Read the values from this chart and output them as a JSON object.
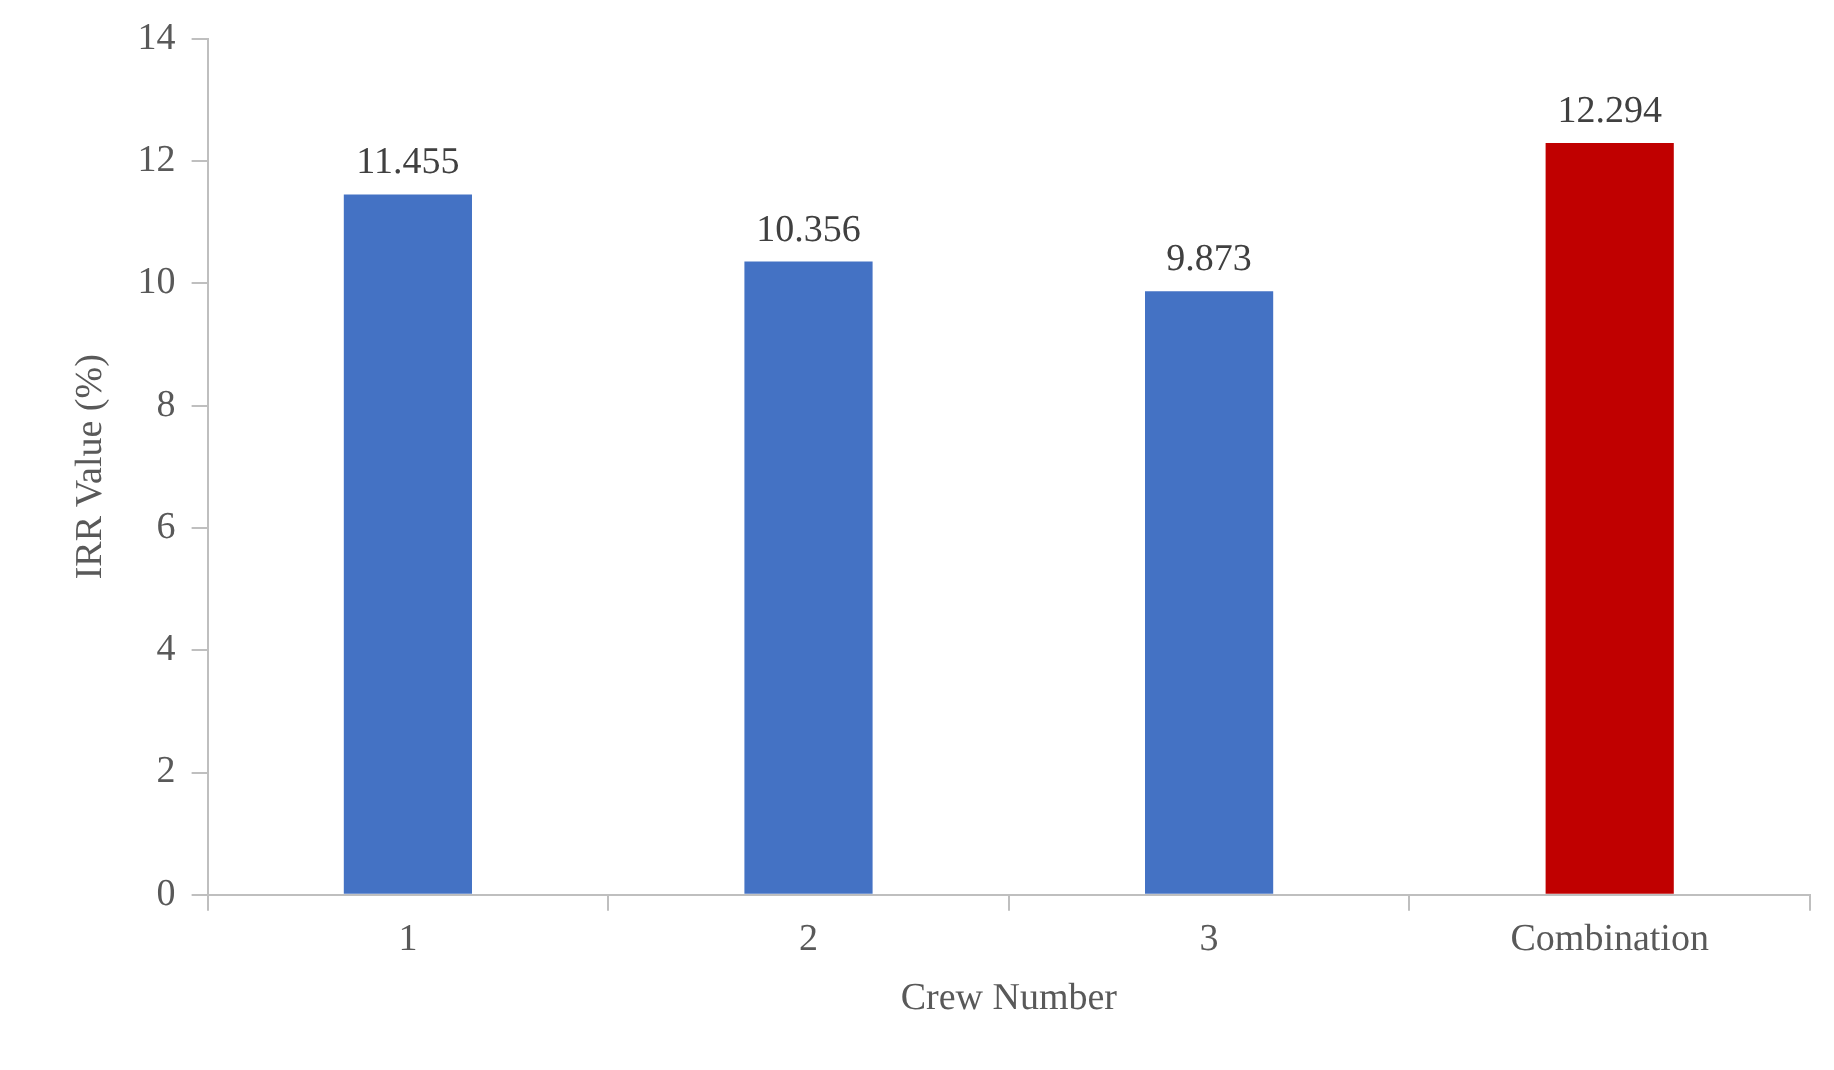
{
  "chart_data": {
    "type": "bar",
    "xlabel": "Crew Number",
    "ylabel": "IRR Value (%)",
    "categories": [
      "1",
      "2",
      "3",
      "Combination"
    ],
    "values": [
      11.455,
      10.356,
      9.873,
      12.294
    ],
    "colors": [
      "#4472c4",
      "#4472c4",
      "#4472c4",
      "#c00000"
    ],
    "ylim": [
      0,
      14
    ],
    "yticks": [
      0,
      2,
      4,
      6,
      8,
      10,
      12,
      14
    ],
    "grid": false,
    "legend": false,
    "data_labels": true
  }
}
